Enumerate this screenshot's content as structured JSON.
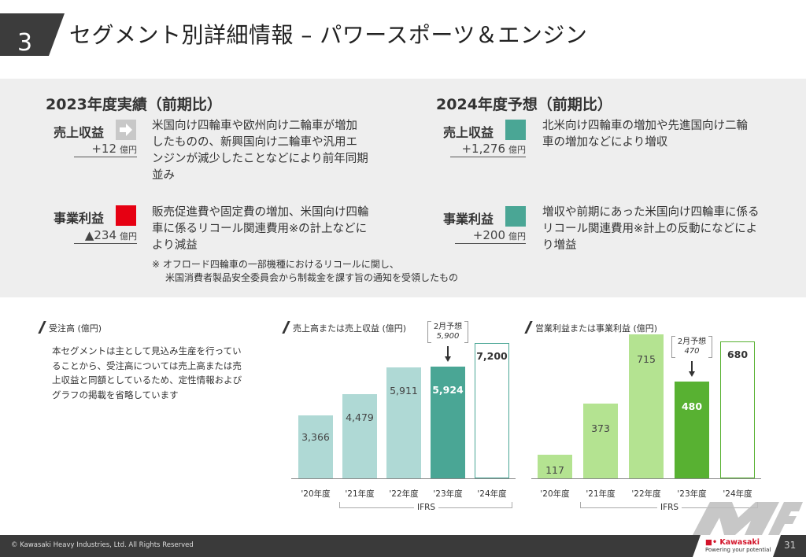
{
  "header": {
    "section_number": "3",
    "title": "セグメント別詳細情報 – パワースポーツ＆エンジン"
  },
  "results_2023": {
    "title": "2023年度実績（前期比）",
    "revenue": {
      "label": "売上収益",
      "value": "+12",
      "unit": "億円",
      "indicator": "arrow-right (flat)",
      "description": "米国向け四輪車や欧州向け二輪車が増加したものの、新興国向け二輪車や汎用エンジンが減少したことなどにより前年同期並み"
    },
    "business_profit": {
      "label": "事業利益",
      "value": "▲234",
      "unit": "億円",
      "indicator": "decrease",
      "description": "販売促進費や固定費の増加、米国向け四輪車に係るリコール関連費用※の計上などにより減益"
    },
    "footnote_line1": "※ オフロード四輪車の一部機種におけるリコールに関し、",
    "footnote_line2": "米国消費者製品安全委員会から制裁金を課す旨の通知を受領したもの"
  },
  "forecast_2024": {
    "title": "2024年度予想（前期比）",
    "revenue": {
      "label": "売上収益",
      "value": "+1,276",
      "unit": "億円",
      "indicator": "increase",
      "description": "北米向け四輪車の増加や先進国向け二輪車の増加などにより増収"
    },
    "business_profit": {
      "label": "事業利益",
      "value": "+200",
      "unit": "億円",
      "indicator": "increase",
      "description": "増収や前期にあった米国向け四輪車に係るリコール関連費用※計上の反動になどにより増益"
    }
  },
  "orders": {
    "title": "受注高 (億円)",
    "description": "本セグメントは主として見込み生産を行っていることから、受注高については売上高または売上収益と同額としているため、定性情報およびグラフの掲載を省略しています"
  },
  "colors": {
    "flat_indicator": "#c8c8c8",
    "decrease_indicator": "#e60012",
    "increase_indicator": "#4aa695",
    "revenue_past": "#afd9d5",
    "revenue_current": "#4aa695",
    "profit_past": "#b4e391",
    "profit_current": "#58b132"
  },
  "chart_data": [
    {
      "type": "bar",
      "title": "売上高または売上収益 (億円)",
      "categories": [
        "'20年度",
        "'21年度",
        "'22年度",
        "'23年度",
        "'24年度"
      ],
      "values": [
        3366,
        4479,
        5911,
        5924,
        7200
      ],
      "value_labels": [
        "3,366",
        "4,479",
        "5,911",
        "5,924",
        "7,200"
      ],
      "bar_styles": [
        "past",
        "past",
        "past",
        "current",
        "forecast"
      ],
      "annotation": {
        "category": "'23年度",
        "label": "2月予想",
        "value": "5,900"
      },
      "group_label": {
        "text": "IFRS",
        "from": "'21年度",
        "to": "'24年度"
      },
      "ylim": [
        0,
        8000
      ],
      "grid": false
    },
    {
      "type": "bar",
      "title": "営業利益または事業利益 (億円)",
      "categories": [
        "'20年度",
        "'21年度",
        "'22年度",
        "'23年度",
        "'24年度"
      ],
      "values": [
        117,
        373,
        715,
        480,
        680
      ],
      "value_labels": [
        "117",
        "373",
        "715",
        "480",
        "680"
      ],
      "bar_styles": [
        "past",
        "past",
        "past",
        "current",
        "forecast"
      ],
      "annotation": {
        "category": "'23年度",
        "label": "2月予想",
        "value": "470"
      },
      "group_label": {
        "text": "IFRS",
        "from": "'21年度",
        "to": "'24年度"
      },
      "ylim": [
        0,
        800
      ],
      "grid": false
    }
  ],
  "footer": {
    "copyright": "© Kawasaki Heavy Industries, Ltd. All Rights Reserved",
    "brand": "Kawasaki",
    "tagline": "Powering your potential",
    "page_number": "31"
  }
}
